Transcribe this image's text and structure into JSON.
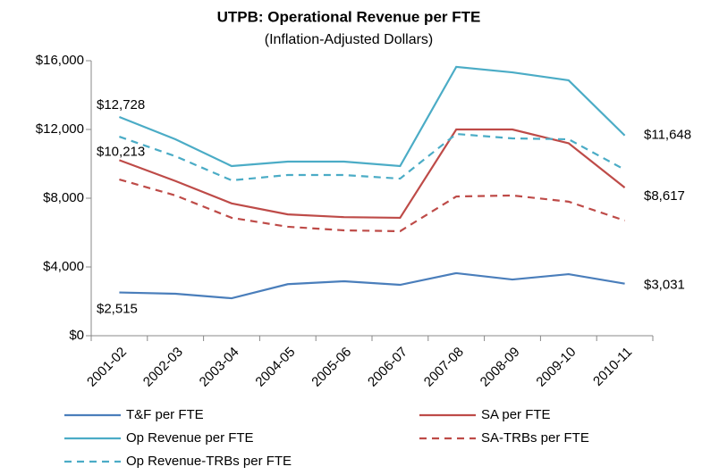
{
  "chart_data": {
    "type": "line",
    "title": "UTPB: Operational Revenue per FTE",
    "subtitle": "(Inflation-Adjusted Dollars)",
    "categories": [
      "2001-02",
      "2002-03",
      "2003-04",
      "2004-05",
      "2005-06",
      "2006-07",
      "2007-08",
      "2008-09",
      "2009-10",
      "2010-11"
    ],
    "ylim": [
      0,
      16000
    ],
    "yticks": [
      {
        "value": 0,
        "label": "$0"
      },
      {
        "value": 4000,
        "label": "$4,000"
      },
      {
        "value": 8000,
        "label": "$8,000"
      },
      {
        "value": 12000,
        "label": "$12,000"
      },
      {
        "value": 16000,
        "label": "$16,000"
      }
    ],
    "grid": false,
    "legend": "bottom",
    "series": [
      {
        "name": "T&F per FTE",
        "color": "#4a7ebb",
        "dash": false,
        "values": [
          2515,
          2440,
          2180,
          3000,
          3170,
          2960,
          3640,
          3270,
          3580,
          3031
        ],
        "value_labels": [
          "$2,515",
          null,
          null,
          null,
          null,
          null,
          null,
          null,
          null,
          "$3,031"
        ]
      },
      {
        "name": "SA per FTE",
        "color": "#be4b48",
        "dash": false,
        "values": [
          10213,
          9000,
          7700,
          7060,
          6900,
          6860,
          12000,
          12000,
          11200,
          8617
        ],
        "value_labels": [
          "$10,213",
          null,
          null,
          null,
          null,
          null,
          null,
          null,
          null,
          "$8,617"
        ]
      },
      {
        "name": "Op Revenue per FTE",
        "color": "#4bacc6",
        "dash": false,
        "values": [
          12728,
          11430,
          9870,
          10130,
          10130,
          9870,
          15640,
          15320,
          14860,
          11648
        ],
        "value_labels": [
          "$12,728",
          null,
          null,
          null,
          null,
          null,
          null,
          null,
          null,
          "$11,648"
        ]
      },
      {
        "name": "SA-TRBs per FTE",
        "color": "#be4b48",
        "dash": true,
        "values": [
          9090,
          8160,
          6860,
          6340,
          6130,
          6080,
          8100,
          8160,
          7800,
          6700
        ]
      },
      {
        "name": "Op Revenue-TRBs per FTE",
        "color": "#4bacc6",
        "dash": true,
        "values": [
          11580,
          10440,
          9040,
          9350,
          9350,
          9140,
          11740,
          11480,
          11430,
          9660
        ]
      }
    ]
  }
}
